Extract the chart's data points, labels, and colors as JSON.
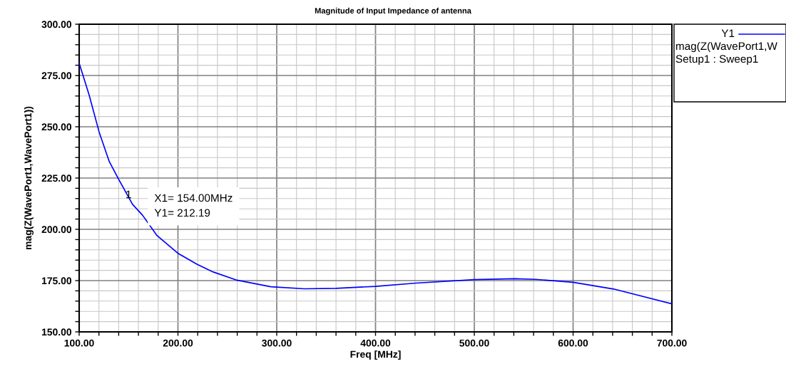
{
  "chart_data": {
    "type": "line",
    "title": "Magnitude of Input Impedance of antenna",
    "xlabel": "Freq [MHz]",
    "ylabel": "mag(Z(WavePort1,WavePort1))",
    "x": [
      100,
      110,
      120.4,
      130.5,
      140.1,
      154,
      164.1,
      178.5,
      200,
      219.2,
      235.7,
      259.8,
      294,
      328,
      360,
      400,
      441,
      500,
      541,
      562,
      600,
      641,
      700
    ],
    "series": [
      {
        "name": "Y1",
        "color": "#0000ff",
        "values": [
          281,
          265.6,
          247.1,
          233,
          224.3,
          212.19,
          206.9,
          197.1,
          188.3,
          183,
          179.2,
          175.2,
          172,
          171,
          171.2,
          172.2,
          173.8,
          175.5,
          175.9,
          175.6,
          174.2,
          170.9,
          163.7
        ]
      }
    ],
    "xlim": [
      100,
      700
    ],
    "ylim": [
      150,
      300
    ],
    "xticks": [
      {
        "value": 100,
        "label": "100.00"
      },
      {
        "value": 120,
        "label": null
      },
      {
        "value": 140,
        "label": null
      },
      {
        "value": 160,
        "label": null
      },
      {
        "value": 180,
        "label": null
      },
      {
        "value": 200,
        "label": "200.00"
      },
      {
        "value": 220,
        "label": null
      },
      {
        "value": 240,
        "label": null
      },
      {
        "value": 260,
        "label": null
      },
      {
        "value": 280,
        "label": null
      },
      {
        "value": 300,
        "label": "300.00"
      },
      {
        "value": 320,
        "label": null
      },
      {
        "value": 340,
        "label": null
      },
      {
        "value": 360,
        "label": null
      },
      {
        "value": 380,
        "label": null
      },
      {
        "value": 400,
        "label": "400.00"
      },
      {
        "value": 420,
        "label": null
      },
      {
        "value": 440,
        "label": null
      },
      {
        "value": 460,
        "label": null
      },
      {
        "value": 480,
        "label": null
      },
      {
        "value": 500,
        "label": "500.00"
      },
      {
        "value": 520,
        "label": null
      },
      {
        "value": 540,
        "label": null
      },
      {
        "value": 560,
        "label": null
      },
      {
        "value": 580,
        "label": null
      },
      {
        "value": 600,
        "label": "600.00"
      },
      {
        "value": 620,
        "label": null
      },
      {
        "value": 640,
        "label": null
      },
      {
        "value": 660,
        "label": null
      },
      {
        "value": 680,
        "label": null
      },
      {
        "value": 700,
        "label": "700.00"
      }
    ],
    "yticks": [
      {
        "value": 150,
        "label": "150.00"
      },
      {
        "value": 155,
        "label": null
      },
      {
        "value": 160,
        "label": null
      },
      {
        "value": 165,
        "label": null
      },
      {
        "value": 170,
        "label": null
      },
      {
        "value": 175,
        "label": "175.00"
      },
      {
        "value": 180,
        "label": null
      },
      {
        "value": 185,
        "label": null
      },
      {
        "value": 190,
        "label": null
      },
      {
        "value": 195,
        "label": null
      },
      {
        "value": 200,
        "label": "200.00"
      },
      {
        "value": 205,
        "label": null
      },
      {
        "value": 210,
        "label": null
      },
      {
        "value": 215,
        "label": null
      },
      {
        "value": 220,
        "label": null
      },
      {
        "value": 225,
        "label": "225.00"
      },
      {
        "value": 230,
        "label": null
      },
      {
        "value": 235,
        "label": null
      },
      {
        "value": 240,
        "label": null
      },
      {
        "value": 245,
        "label": null
      },
      {
        "value": 250,
        "label": "250.00"
      },
      {
        "value": 255,
        "label": null
      },
      {
        "value": 260,
        "label": null
      },
      {
        "value": 265,
        "label": null
      },
      {
        "value": 270,
        "label": null
      },
      {
        "value": 275,
        "label": "275.00"
      },
      {
        "value": 280,
        "label": null
      },
      {
        "value": 285,
        "label": null
      },
      {
        "value": 290,
        "label": null
      },
      {
        "value": 295,
        "label": null
      },
      {
        "value": 300,
        "label": "300.00"
      }
    ],
    "annotations": [
      {
        "text": "1",
        "x": 154,
        "y": 212.19
      },
      {
        "text": "X1= 154.00MHz\nY1= 212.19",
        "x": 154,
        "y": 212.19
      },
      "mag(Z(WavePort1,W",
      "Setup1 : Sweep1"
    ],
    "grid": true,
    "legend": "right",
    "line_style": "solid"
  }
}
